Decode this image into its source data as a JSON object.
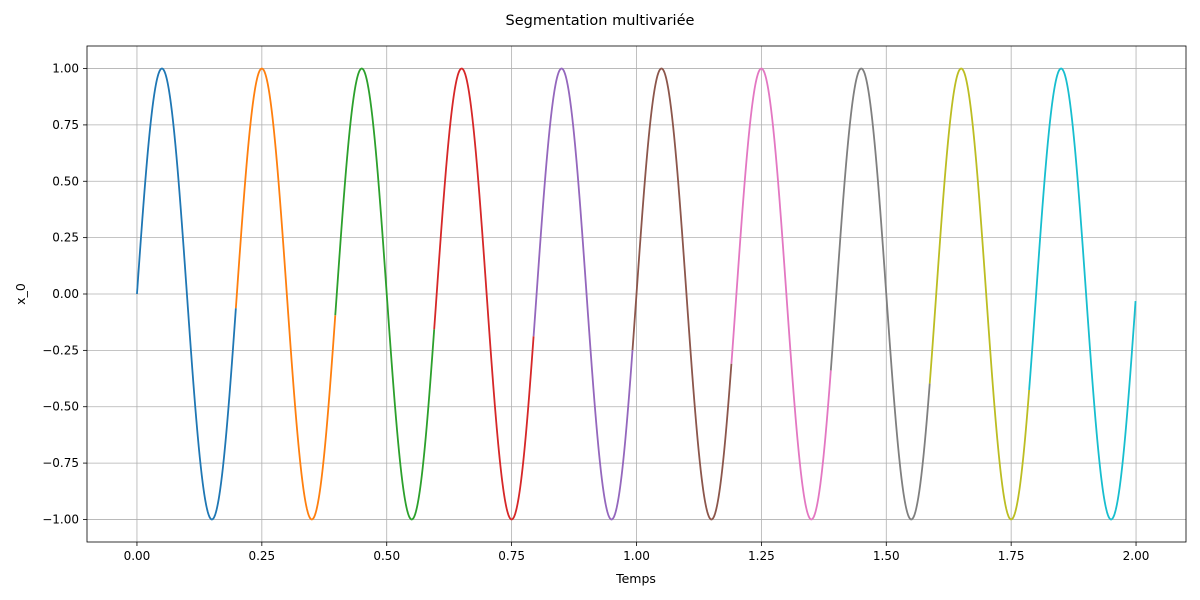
{
  "chart_data": {
    "type": "line",
    "title": "Segmentation multivariée",
    "xlabel": "Temps",
    "ylabel": "x_0",
    "xlim": [
      -0.1,
      2.1
    ],
    "ylim": [
      -1.1,
      1.1
    ],
    "xticks": [
      0.0,
      0.25,
      0.5,
      0.75,
      1.0,
      1.25,
      1.5,
      1.75,
      2.0
    ],
    "xtick_labels": [
      "0.00",
      "0.25",
      "0.50",
      "0.75",
      "1.00",
      "1.25",
      "1.50",
      "1.75",
      "2.00"
    ],
    "yticks": [
      -1.0,
      -0.75,
      -0.5,
      -0.25,
      0.0,
      0.25,
      0.5,
      0.75,
      1.0
    ],
    "ytick_labels": [
      "−1.00",
      "−0.75",
      "−0.50",
      "−0.25",
      "0.00",
      "0.25",
      "0.50",
      "0.75",
      "1.00"
    ],
    "grid": true,
    "function": "sin(2*pi*5*t)",
    "series": [
      {
        "t_start": 0.0,
        "t_end": 0.198,
        "color": "#1f77b4"
      },
      {
        "t_start": 0.198,
        "t_end": 0.397,
        "color": "#ff7f0e"
      },
      {
        "t_start": 0.397,
        "t_end": 0.595,
        "color": "#2ca02c"
      },
      {
        "t_start": 0.595,
        "t_end": 0.794,
        "color": "#d62728"
      },
      {
        "t_start": 0.794,
        "t_end": 0.992,
        "color": "#9467bd"
      },
      {
        "t_start": 0.992,
        "t_end": 1.19,
        "color": "#8c564b"
      },
      {
        "t_start": 1.19,
        "t_end": 1.389,
        "color": "#e377c2"
      },
      {
        "t_start": 1.389,
        "t_end": 1.587,
        "color": "#7f7f7f"
      },
      {
        "t_start": 1.587,
        "t_end": 1.786,
        "color": "#bcbd22"
      },
      {
        "t_start": 1.786,
        "t_end": 1.999,
        "color": "#17becf"
      }
    ]
  }
}
